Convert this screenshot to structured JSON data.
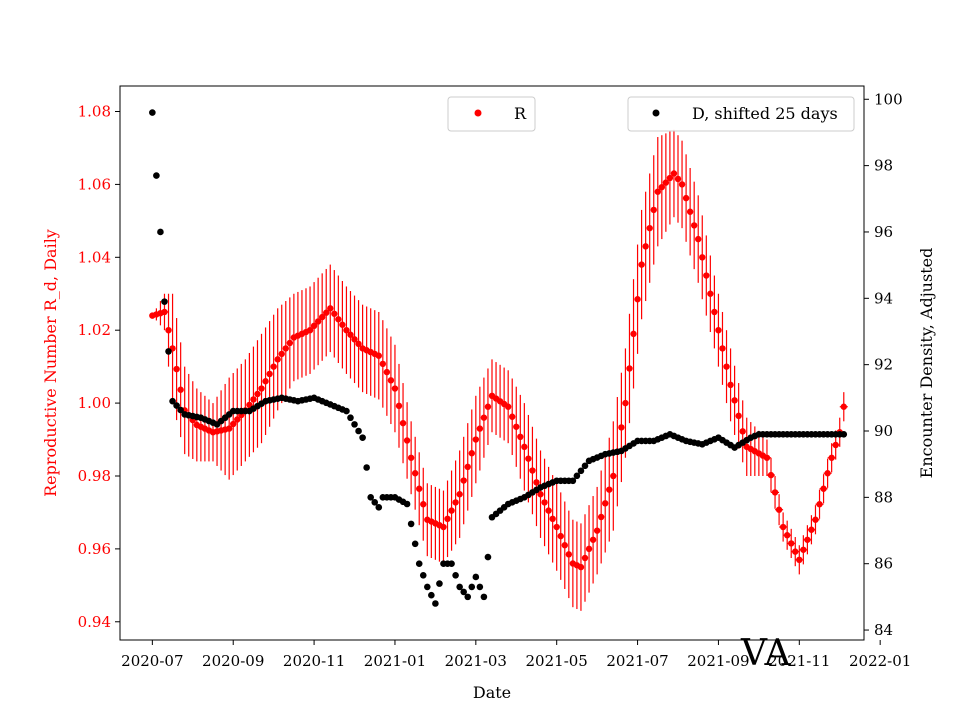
{
  "chart_data": {
    "type": "scatter",
    "title": "",
    "xlabel": "Date",
    "ylabel_left": "Reproductive Number R_d, Daily",
    "ylabel_right": "Encounter Density, Adjusted",
    "annotation": "VA",
    "colors": {
      "R": "#ff0000",
      "D": "#000000",
      "left_axis": "#ff0000",
      "right_axis": "#000000"
    },
    "x_ticks": [
      "2020-07",
      "2020-09",
      "2020-11",
      "2021-01",
      "2021-03",
      "2021-05",
      "2021-07",
      "2021-09",
      "2021-11",
      "2022-01"
    ],
    "x_range_days": [
      -8,
      176
    ],
    "left_ylim": [
      0.935,
      1.087
    ],
    "left_ticks": [
      "0.94",
      "0.96",
      "0.98",
      "1.00",
      "1.02",
      "1.04",
      "1.06",
      "1.08"
    ],
    "right_ylim": [
      83.7,
      100.4
    ],
    "right_ticks": [
      "84",
      "86",
      "88",
      "90",
      "92",
      "94",
      "96",
      "98",
      "100"
    ],
    "legend": [
      {
        "name": "R",
        "marker": "dot",
        "placement": "top-center"
      },
      {
        "name": "D, shifted 25 days",
        "marker": "dot",
        "placement": "top-right"
      }
    ],
    "series": [
      {
        "name": "R",
        "axis": "left",
        "x_days": [
          0,
          3,
          5,
          8,
          11,
          15,
          19,
          23,
          27,
          31,
          35,
          39,
          44,
          48,
          52,
          56,
          60,
          64,
          68,
          72,
          76,
          80,
          84,
          88,
          92,
          96,
          100,
          104,
          106,
          110,
          114,
          117,
          121,
          125,
          129,
          131,
          135,
          139,
          143,
          147,
          152,
          156,
          160,
          164,
          168,
          170,
          171
        ],
        "y": [
          1.024,
          1.025,
          1.015,
          0.998,
          0.994,
          0.992,
          0.993,
          0.998,
          1.004,
          1.012,
          1.018,
          1.02,
          1.026,
          1.02,
          1.015,
          1.013,
          1.004,
          0.985,
          0.968,
          0.966,
          0.975,
          0.99,
          1.002,
          0.999,
          0.988,
          0.975,
          0.966,
          0.956,
          0.955,
          0.965,
          0.98,
          1.0,
          1.038,
          1.058,
          1.063,
          1.06,
          1.045,
          1.025,
          1.005,
          0.988,
          0.985,
          0.966,
          0.957,
          0.968,
          0.985,
          0.992,
          0.999
        ],
        "err": [
          0.0,
          0.005,
          0.015,
          0.012,
          0.01,
          0.008,
          0.014,
          0.014,
          0.015,
          0.014,
          0.012,
          0.012,
          0.012,
          0.012,
          0.012,
          0.012,
          0.012,
          0.01,
          0.01,
          0.01,
          0.012,
          0.012,
          0.01,
          0.01,
          0.012,
          0.012,
          0.012,
          0.012,
          0.012,
          0.012,
          0.015,
          0.015,
          0.015,
          0.015,
          0.012,
          0.012,
          0.012,
          0.01,
          0.01,
          0.008,
          0.005,
          0.004,
          0.004,
          0.004,
          0.004,
          0.004,
          0.004
        ]
      },
      {
        "name": "D, shifted 25 days",
        "axis": "right",
        "x_days": [
          0,
          1,
          2,
          3,
          4,
          5,
          8,
          12,
          16,
          20,
          24,
          28,
          32,
          36,
          40,
          44,
          48,
          52,
          54,
          56,
          57,
          60,
          63,
          66,
          68,
          70,
          72,
          74,
          76,
          78,
          80,
          82,
          84,
          88,
          92,
          96,
          100,
          104,
          108,
          112,
          116,
          120,
          124,
          128,
          132,
          136,
          140,
          144,
          148,
          150,
          152,
          156,
          160,
          164,
          168,
          171
        ],
        "y": [
          99.6,
          97.7,
          96.0,
          93.9,
          92.4,
          90.9,
          90.5,
          90.4,
          90.2,
          90.6,
          90.6,
          90.9,
          91.0,
          90.9,
          91.0,
          90.8,
          90.6,
          89.8,
          88.0,
          87.7,
          88.0,
          88.0,
          87.8,
          86.0,
          85.3,
          84.8,
          86.0,
          86.0,
          85.3,
          85.0,
          85.6,
          85.0,
          87.4,
          87.8,
          88.0,
          88.3,
          88.5,
          88.5,
          89.1,
          89.3,
          89.4,
          89.7,
          89.7,
          89.9,
          89.7,
          89.6,
          89.8,
          89.5,
          89.8,
          89.9,
          89.9,
          89.9,
          89.9,
          89.9,
          89.9,
          89.9
        ]
      }
    ]
  }
}
